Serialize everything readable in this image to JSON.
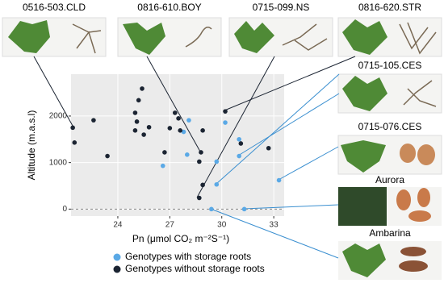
{
  "chart_data": {
    "type": "scatter",
    "y_label": "Altitude (m.a.s.l)",
    "x_label": "Pn (μmol CO₂ m⁻²S⁻¹)",
    "xlim": [
      21.3,
      33.6
    ],
    "ylim": [
      -150,
      2900
    ],
    "xticks": [
      24,
      27,
      30,
      33
    ],
    "yticks": [
      0,
      1000,
      2000
    ],
    "grid": true,
    "reference_line": 0,
    "series": [
      {
        "name": "Genotypes with storage roots",
        "color": "#5aa9e6",
        "x": [
          28.1,
          30.2,
          27.8,
          28.0,
          26.6,
          29.7,
          31.0,
          31.0,
          29.7,
          33.3,
          29.4,
          31.3
        ],
        "values": [
          1910,
          1860,
          1660,
          1170,
          930,
          1020,
          1500,
          1140,
          530,
          620,
          0,
          0
        ]
      },
      {
        "name": "Genotypes without storage roots",
        "color": "#1b2432",
        "x": [
          21.4,
          21.5,
          22.6,
          23.4,
          25.4,
          25.2,
          25.0,
          25.1,
          25.0,
          25.5,
          25.8,
          27.3,
          27.5,
          27.0,
          26.7,
          27.6,
          28.9,
          30.2,
          28.8,
          28.7,
          28.9,
          28.7,
          31.1,
          32.7
        ],
        "values": [
          1750,
          1430,
          1910,
          1140,
          2590,
          2340,
          2070,
          1880,
          1690,
          1600,
          1760,
          2070,
          1950,
          1740,
          1220,
          1690,
          1690,
          2100,
          1220,
          1020,
          520,
          240,
          1410,
          1310
        ]
      }
    ]
  },
  "panels": [
    "0516-503.CLD",
    "0816-610.BOY",
    "0715-099.NS",
    "0816-620.STR",
    "0715-105.CES",
    "0715-076.CES",
    "Aurora",
    "Ambarina"
  ]
}
